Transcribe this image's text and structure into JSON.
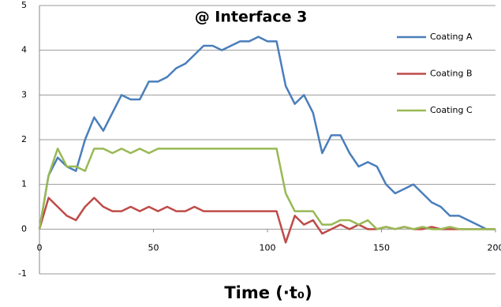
{
  "chart_data": {
    "type": "line",
    "title": "@ Interface 3",
    "x_label": "Time (·t₀)",
    "x": [
      0,
      4,
      8,
      12,
      16,
      20,
      24,
      28,
      32,
      36,
      40,
      44,
      48,
      52,
      56,
      60,
      64,
      68,
      72,
      76,
      80,
      84,
      88,
      92,
      96,
      100,
      104,
      108,
      112,
      116,
      120,
      124,
      128,
      132,
      136,
      140,
      144,
      148,
      152,
      156,
      160,
      164,
      168,
      172,
      176,
      180,
      184,
      188,
      192,
      196,
      200
    ],
    "series": [
      {
        "name": "Coating A",
        "color": "#4a7ebb",
        "values": [
          0,
          1.2,
          1.6,
          1.4,
          1.3,
          2.0,
          2.5,
          2.2,
          2.6,
          3.0,
          2.9,
          2.9,
          3.3,
          3.3,
          3.4,
          3.6,
          3.7,
          3.9,
          4.1,
          4.1,
          4.0,
          4.1,
          4.2,
          4.2,
          4.3,
          4.2,
          4.2,
          3.2,
          2.8,
          3.0,
          2.6,
          1.7,
          2.1,
          2.1,
          1.7,
          1.4,
          1.5,
          1.4,
          1.0,
          0.8,
          0.9,
          1.0,
          0.8,
          0.6,
          0.5,
          0.3,
          0.3,
          0.2,
          0.1,
          0,
          0
        ]
      },
      {
        "name": "Coating B",
        "color": "#be4b48",
        "values": [
          0,
          0.7,
          0.5,
          0.3,
          0.2,
          0.5,
          0.7,
          0.5,
          0.4,
          0.4,
          0.5,
          0.4,
          0.5,
          0.4,
          0.5,
          0.4,
          0.4,
          0.5,
          0.4,
          0.4,
          0.4,
          0.4,
          0.4,
          0.4,
          0.4,
          0.4,
          0.4,
          -0.3,
          0.3,
          0.1,
          0.2,
          -0.1,
          0,
          0.1,
          0,
          0.1,
          0,
          0,
          0.05,
          0,
          0.05,
          0,
          0,
          0.05,
          0,
          0,
          0,
          0,
          0,
          0,
          0
        ]
      },
      {
        "name": "Coating C",
        "color": "#98b954",
        "values": [
          0,
          1.2,
          1.8,
          1.4,
          1.4,
          1.3,
          1.8,
          1.8,
          1.7,
          1.8,
          1.7,
          1.8,
          1.7,
          1.8,
          1.8,
          1.8,
          1.8,
          1.8,
          1.8,
          1.8,
          1.8,
          1.8,
          1.8,
          1.8,
          1.8,
          1.8,
          1.8,
          0.8,
          0.4,
          0.4,
          0.4,
          0.1,
          0.1,
          0.2,
          0.2,
          0.1,
          0.2,
          0,
          0.05,
          0,
          0.05,
          0,
          0.05,
          0,
          0,
          0.05,
          0,
          0,
          0,
          0,
          0
        ]
      }
    ],
    "xlim": [
      0,
      200
    ],
    "xticks": [
      0,
      50,
      100,
      150,
      200
    ],
    "ylim": [
      -1,
      5
    ],
    "yticks": [
      -1,
      0,
      1,
      2,
      3,
      4,
      5
    ],
    "grid": true
  }
}
